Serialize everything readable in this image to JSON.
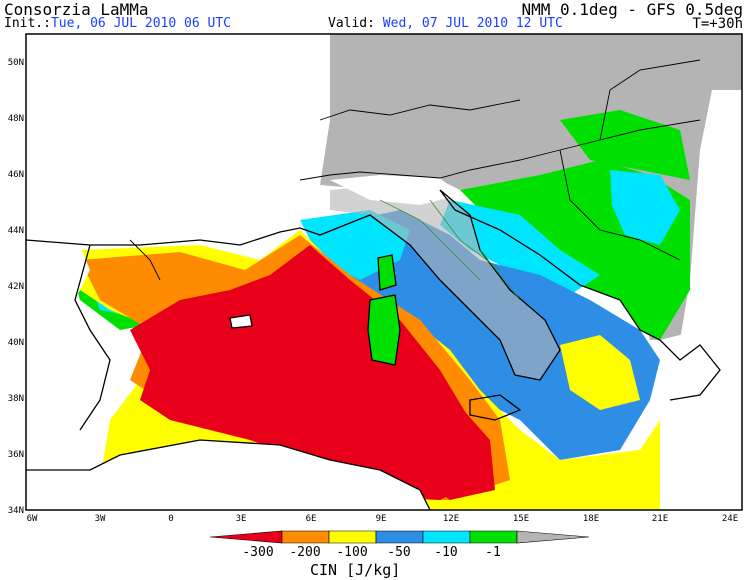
{
  "header": {
    "org": "Consorzia LaMMa",
    "model": "NMM 0.1deg - GFS 0.5deg",
    "init_label": "Init.:",
    "init_value": "Tue, 06 JUL 2010  06 UTC",
    "valid_label": "Valid:",
    "valid_value": "Wed, 07 JUL 2010  12 UTC",
    "step": "T=+30h"
  },
  "axes": {
    "lat_labels": [
      "34N",
      "36N",
      "38N",
      "40N",
      "42N",
      "44N",
      "46N",
      "48N",
      "50N"
    ],
    "lon_labels": [
      "6W",
      "3W",
      "0",
      "3E",
      "6E",
      "9E",
      "12E",
      "15E",
      "18E",
      "21E",
      "24E"
    ]
  },
  "colorbar": {
    "title": "CIN [J/kg]",
    "colors": [
      "#e8001a",
      "#ff8c00",
      "#ffff00",
      "#2e8ee6",
      "#00e5ff",
      "#00e000",
      "#b4b4b4"
    ],
    "labels": [
      "-300",
      "-200",
      "-100",
      "-50",
      "-10",
      "-1"
    ]
  },
  "colors": {
    "land_outline": "#000000",
    "regions": "#2e8b2e",
    "no_data": "#ffffff",
    "accent_blue": "#1a3dff"
  }
}
